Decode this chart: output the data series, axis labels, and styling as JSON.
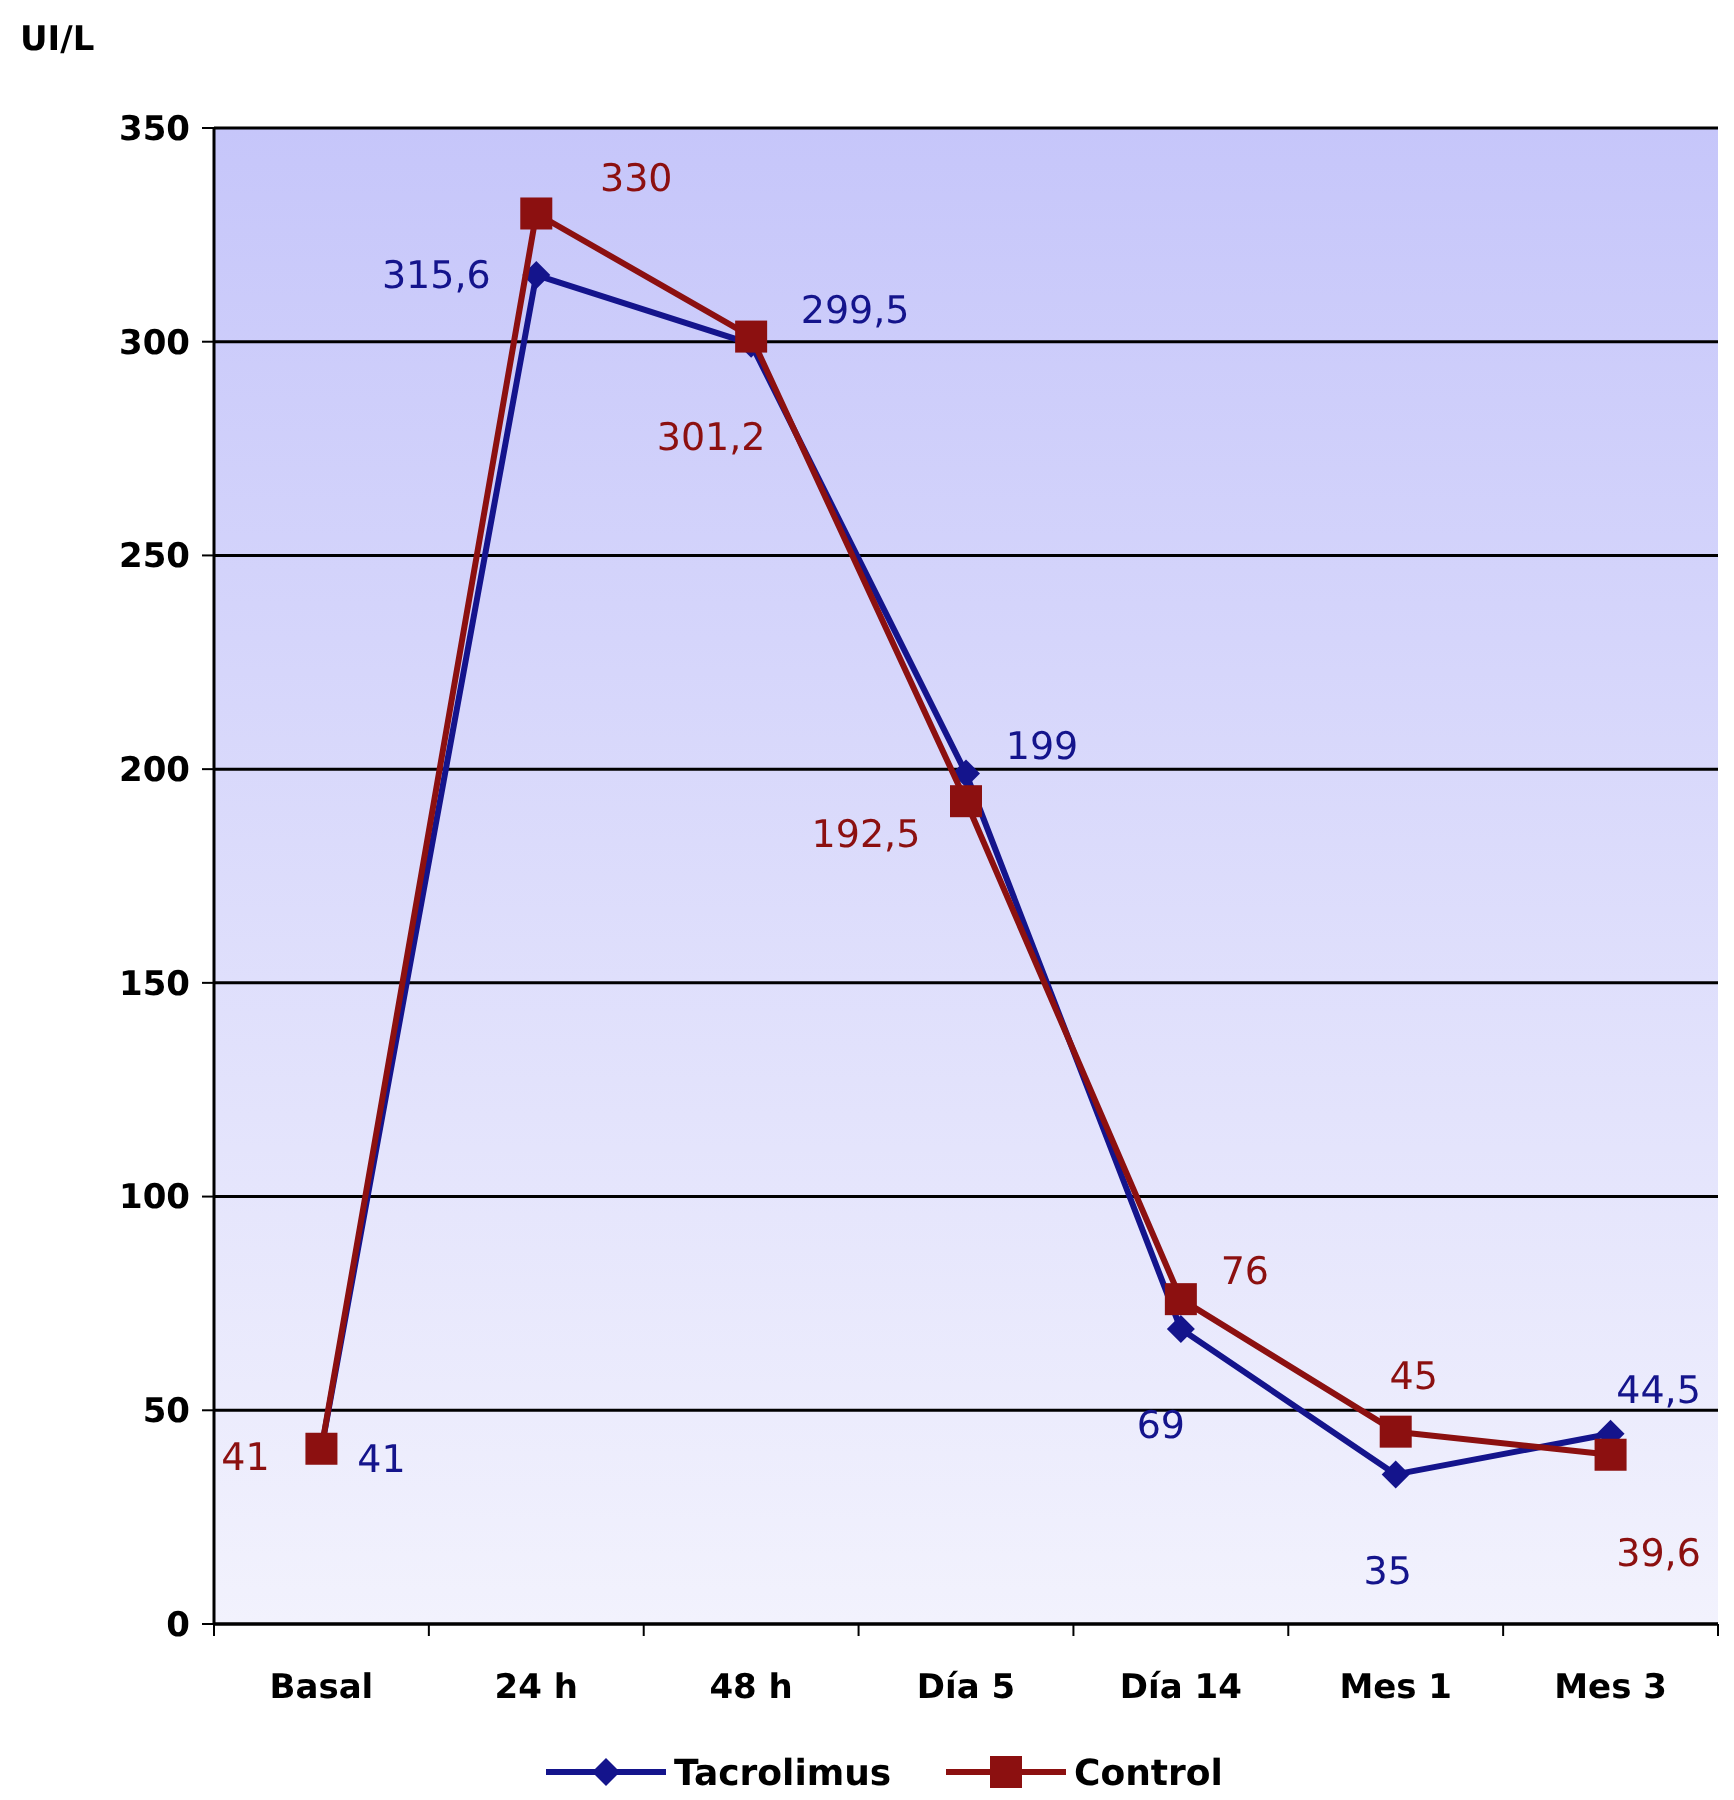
{
  "chart_data": {
    "type": "line",
    "ylabel": "UI/L",
    "categories": [
      "Basal",
      "24 h",
      "48 h",
      "Día 5",
      "Día 14",
      "Mes 1",
      "Mes 3"
    ],
    "ylim": [
      0,
      350
    ],
    "yticks": [
      0,
      50,
      100,
      150,
      200,
      250,
      300,
      350
    ],
    "grid": "y",
    "legend": "bottom",
    "series": [
      {
        "name": "Tacrolimus",
        "color": "#14148c",
        "marker": "diamond",
        "values": [
          41,
          315.6,
          299.5,
          199,
          69,
          35,
          44.5
        ],
        "value_labels": [
          "41",
          "315,6",
          "299,5",
          "199",
          "69",
          "35",
          "44,5"
        ]
      },
      {
        "name": "Control",
        "color": "#8c1010",
        "marker": "square",
        "values": [
          41,
          330,
          301.2,
          192.5,
          76,
          45,
          39.6
        ],
        "value_labels": [
          "41",
          "330",
          "301,2",
          "192,5",
          "76",
          "45",
          "39,6"
        ]
      }
    ]
  }
}
